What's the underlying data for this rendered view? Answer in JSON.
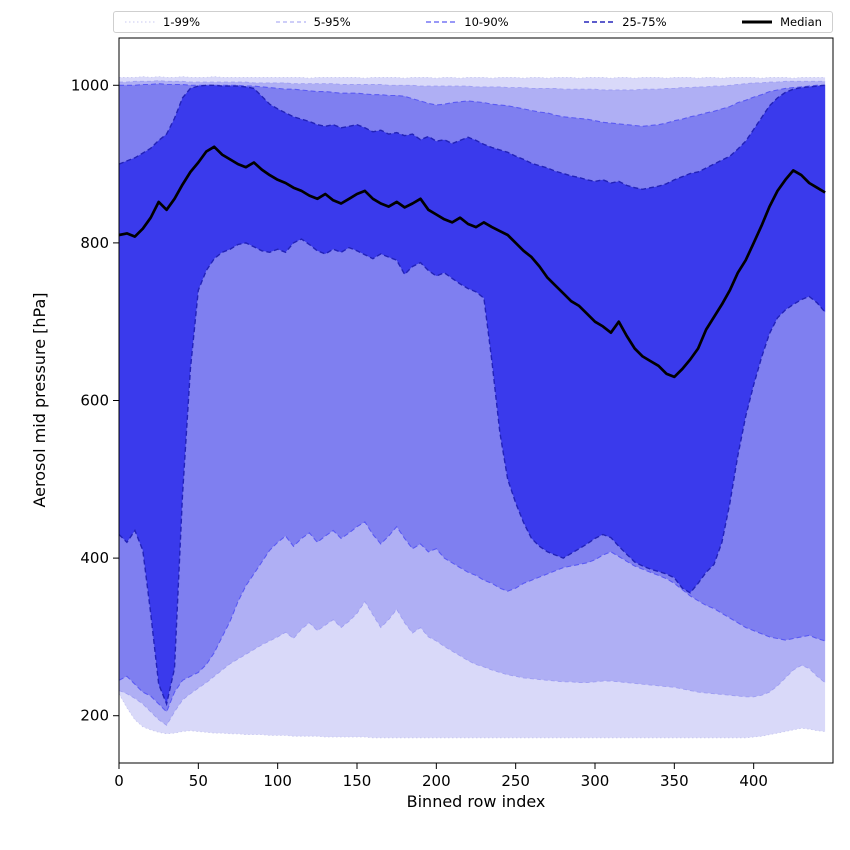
{
  "figure": {
    "background": "#ffffff"
  },
  "legend": {
    "items": [
      {
        "label": "1-99%",
        "color": "#c9c9f2",
        "dash": "1.5 2.5",
        "width": 1.0
      },
      {
        "label": "5-95%",
        "color": "#9e9ef2",
        "dash": "4 3",
        "width": 1.0
      },
      {
        "label": "10-90%",
        "color": "#5a5af2",
        "dash": "5 3",
        "width": 1.2
      },
      {
        "label": "25-75%",
        "color": "#2626bb",
        "dash": "5 3",
        "width": 1.6
      },
      {
        "label": "Median",
        "color": "#000000",
        "dash": "",
        "width": 3.0
      }
    ]
  },
  "chart_data": {
    "type": "area",
    "title": "",
    "xlabel": "Binned row index",
    "ylabel": "Aerosol mid pressure [hPa]",
    "legend_position": "top",
    "grid": false,
    "xlim": [
      0,
      450
    ],
    "ylim": [
      140,
      1060
    ],
    "xticks": [
      0,
      50,
      100,
      150,
      200,
      250,
      300,
      350,
      400
    ],
    "yticks": [
      200,
      400,
      600,
      800,
      1000
    ],
    "x": [
      0,
      5,
      10,
      15,
      20,
      25,
      30,
      35,
      40,
      45,
      50,
      55,
      60,
      65,
      70,
      75,
      80,
      85,
      90,
      95,
      100,
      105,
      110,
      115,
      120,
      125,
      130,
      135,
      140,
      145,
      150,
      155,
      160,
      165,
      170,
      175,
      180,
      185,
      190,
      195,
      200,
      205,
      210,
      215,
      220,
      225,
      230,
      235,
      240,
      245,
      250,
      255,
      260,
      265,
      270,
      275,
      280,
      285,
      290,
      295,
      300,
      305,
      310,
      315,
      320,
      325,
      330,
      335,
      340,
      345,
      350,
      355,
      360,
      365,
      370,
      375,
      380,
      385,
      390,
      395,
      400,
      405,
      410,
      415,
      420,
      425,
      430,
      435,
      440,
      445
    ],
    "percentiles": {
      "p1": [
        228,
        210,
        195,
        186,
        182,
        179,
        177,
        178,
        180,
        181,
        180,
        179,
        178,
        178,
        177,
        177,
        176,
        176,
        176,
        175,
        175,
        175,
        174,
        174,
        174,
        174,
        173,
        173,
        173,
        173,
        173,
        173,
        172,
        172,
        172,
        172,
        172,
        172,
        172,
        172,
        172,
        172,
        172,
        172,
        172,
        172,
        172,
        172,
        172,
        172,
        172,
        172,
        172,
        172,
        172,
        172,
        172,
        172,
        172,
        172,
        172,
        172,
        172,
        172,
        172,
        172,
        172,
        172,
        172,
        172,
        172,
        172,
        172,
        172,
        172,
        172,
        172,
        172,
        172,
        172,
        173,
        174,
        176,
        178,
        180,
        182,
        184,
        183,
        181,
        180
      ],
      "p5": [
        232,
        228,
        222,
        215,
        205,
        195,
        188,
        205,
        220,
        228,
        235,
        242,
        250,
        258,
        266,
        272,
        278,
        284,
        290,
        295,
        300,
        306,
        298,
        310,
        318,
        308,
        315,
        322,
        312,
        320,
        330,
        345,
        328,
        312,
        322,
        335,
        318,
        305,
        312,
        300,
        295,
        288,
        282,
        276,
        270,
        265,
        262,
        258,
        255,
        252,
        250,
        248,
        247,
        246,
        245,
        244,
        243,
        243,
        242,
        242,
        243,
        244,
        244,
        243,
        242,
        241,
        240,
        239,
        238,
        237,
        236,
        234,
        232,
        230,
        229,
        228,
        227,
        226,
        225,
        224,
        224,
        226,
        230,
        238,
        248,
        258,
        264,
        260,
        250,
        242
      ],
      "p10": [
        245,
        250,
        240,
        230,
        225,
        215,
        205,
        230,
        245,
        250,
        255,
        265,
        280,
        300,
        320,
        345,
        365,
        380,
        395,
        410,
        420,
        428,
        415,
        425,
        432,
        420,
        428,
        435,
        425,
        432,
        440,
        446,
        430,
        418,
        428,
        440,
        425,
        412,
        418,
        408,
        412,
        400,
        394,
        388,
        382,
        378,
        372,
        368,
        362,
        358,
        362,
        368,
        372,
        376,
        380,
        384,
        388,
        390,
        392,
        394,
        398,
        404,
        408,
        402,
        396,
        390,
        386,
        382,
        378,
        374,
        368,
        360,
        352,
        346,
        340,
        336,
        330,
        324,
        318,
        312,
        308,
        304,
        300,
        298,
        296,
        298,
        300,
        302,
        298,
        295
      ],
      "p25": [
        430,
        420,
        435,
        410,
        330,
        240,
        215,
        260,
        480,
        640,
        740,
        765,
        780,
        788,
        792,
        798,
        800,
        795,
        790,
        788,
        792,
        788,
        800,
        805,
        798,
        790,
        786,
        792,
        788,
        794,
        790,
        785,
        780,
        786,
        782,
        778,
        760,
        770,
        775,
        765,
        758,
        762,
        755,
        748,
        742,
        738,
        730,
        650,
        560,
        500,
        470,
        445,
        425,
        415,
        408,
        404,
        400,
        406,
        412,
        418,
        425,
        430,
        426,
        415,
        405,
        395,
        390,
        386,
        383,
        380,
        375,
        362,
        356,
        368,
        382,
        392,
        420,
        470,
        530,
        580,
        620,
        655,
        685,
        705,
        715,
        722,
        728,
        732,
        724,
        712
      ],
      "p75": [
        900,
        904,
        908,
        914,
        920,
        930,
        938,
        958,
        984,
        996,
        999,
        1000,
        1000,
        999,
        999,
        999,
        998,
        996,
        986,
        976,
        970,
        965,
        960,
        957,
        954,
        950,
        948,
        950,
        946,
        948,
        950,
        946,
        941,
        943,
        938,
        940,
        936,
        938,
        931,
        935,
        929,
        931,
        926,
        930,
        934,
        930,
        925,
        921,
        918,
        915,
        910,
        906,
        901,
        898,
        895,
        891,
        888,
        885,
        883,
        880,
        878,
        880,
        876,
        878,
        873,
        870,
        868,
        870,
        872,
        875,
        880,
        884,
        888,
        890,
        895,
        900,
        905,
        910,
        919,
        929,
        944,
        959,
        974,
        984,
        991,
        995,
        997,
        998,
        999,
        1000
      ],
      "p90": [
        1000,
        1000,
        1000,
        1001,
        1001,
        1002,
        1001,
        1001,
        1001,
        1000,
        1000,
        1000,
        1000,
        1000,
        1000,
        1000,
        999,
        999,
        998,
        997,
        996,
        995,
        995,
        994,
        993,
        992,
        992,
        991,
        990,
        990,
        990,
        989,
        988,
        988,
        987,
        987,
        986,
        983,
        980,
        977,
        975,
        976,
        978,
        979,
        980,
        979,
        978,
        976,
        975,
        974,
        972,
        970,
        968,
        966,
        965,
        962,
        960,
        959,
        958,
        957,
        955,
        953,
        952,
        951,
        950,
        949,
        948,
        949,
        950,
        952,
        955,
        957,
        960,
        962,
        965,
        967,
        970,
        973,
        978,
        981,
        985,
        988,
        992,
        994,
        996,
        997,
        998,
        999,
        1000,
        1000
      ],
      "p95": [
        1004,
        1004,
        1005,
        1005,
        1005,
        1006,
        1005,
        1005,
        1005,
        1004,
        1004,
        1004,
        1004,
        1004,
        1004,
        1004,
        1004,
        1003,
        1003,
        1003,
        1003,
        1003,
        1002,
        1002,
        1002,
        1002,
        1002,
        1002,
        1001,
        1001,
        1001,
        1001,
        1001,
        1001,
        1000,
        1000,
        1000,
        1000,
        999,
        999,
        999,
        999,
        999,
        999,
        999,
        998,
        998,
        998,
        998,
        997,
        997,
        997,
        996,
        996,
        996,
        996,
        995,
        995,
        995,
        995,
        995,
        994,
        994,
        994,
        994,
        994,
        995,
        995,
        995,
        996,
        996,
        997,
        997,
        998,
        998,
        999,
        999,
        1000,
        1001,
        1002,
        1003,
        1003,
        1004,
        1004,
        1005,
        1005,
        1005,
        1005,
        1005,
        1005
      ],
      "p99": [
        1010,
        1010,
        1010,
        1011,
        1010,
        1011,
        1010,
        1010,
        1011,
        1010,
        1010,
        1010,
        1011,
        1010,
        1010,
        1010,
        1010,
        1010,
        1010,
        1010,
        1010,
        1010,
        1010,
        1010,
        1009,
        1010,
        1010,
        1010,
        1010,
        1010,
        1010,
        1009,
        1010,
        1010,
        1010,
        1010,
        1009,
        1010,
        1010,
        1010,
        1009,
        1010,
        1010,
        1009,
        1010,
        1010,
        1010,
        1009,
        1010,
        1010,
        1010,
        1009,
        1010,
        1010,
        1009,
        1010,
        1010,
        1010,
        1009,
        1010,
        1010,
        1010,
        1009,
        1010,
        1010,
        1009,
        1010,
        1010,
        1010,
        1009,
        1010,
        1010,
        1010,
        1009,
        1010,
        1010,
        1009,
        1010,
        1010,
        1010,
        1010,
        1009,
        1010,
        1010,
        1010,
        1009,
        1010,
        1010,
        1010,
        1010
      ]
    },
    "median": [
      810,
      812,
      808,
      818,
      832,
      852,
      842,
      856,
      874,
      890,
      902,
      916,
      922,
      912,
      906,
      900,
      896,
      902,
      893,
      886,
      880,
      876,
      870,
      866,
      860,
      856,
      862,
      854,
      850,
      856,
      862,
      866,
      856,
      850,
      846,
      852,
      845,
      850,
      856,
      842,
      836,
      830,
      826,
      832,
      824,
      820,
      826,
      820,
      815,
      810,
      800,
      790,
      782,
      770,
      756,
      746,
      736,
      726,
      720,
      710,
      700,
      694,
      686,
      700,
      682,
      666,
      656,
      650,
      644,
      634,
      630,
      640,
      652,
      666,
      690,
      706,
      722,
      740,
      762,
      778,
      800,
      822,
      846,
      866,
      880,
      892,
      886,
      876,
      870,
      864
    ],
    "median_style": {
      "color": "#000000",
      "width": 2.7
    },
    "bands": [
      {
        "name": "1-99%",
        "low": "p1",
        "high": "p99",
        "fill": "#d9d9f9",
        "edge": "#c6c6f0",
        "dash": "1.5 2.5",
        "width": 0.8
      },
      {
        "name": "5-95%",
        "low": "p5",
        "high": "p95",
        "fill": "#afaff4",
        "edge": "#9e9ef2",
        "dash": "4 3",
        "width": 0.9
      },
      {
        "name": "10-90%",
        "low": "p10",
        "high": "p90",
        "fill": "#7f7ff0",
        "edge": "#5a5af2",
        "dash": "5 3",
        "width": 1.1
      },
      {
        "name": "25-75%",
        "low": "p25",
        "high": "p75",
        "fill": "#3a3aec",
        "edge": "#2222b8",
        "dash": "5 3",
        "width": 1.4
      }
    ]
  }
}
